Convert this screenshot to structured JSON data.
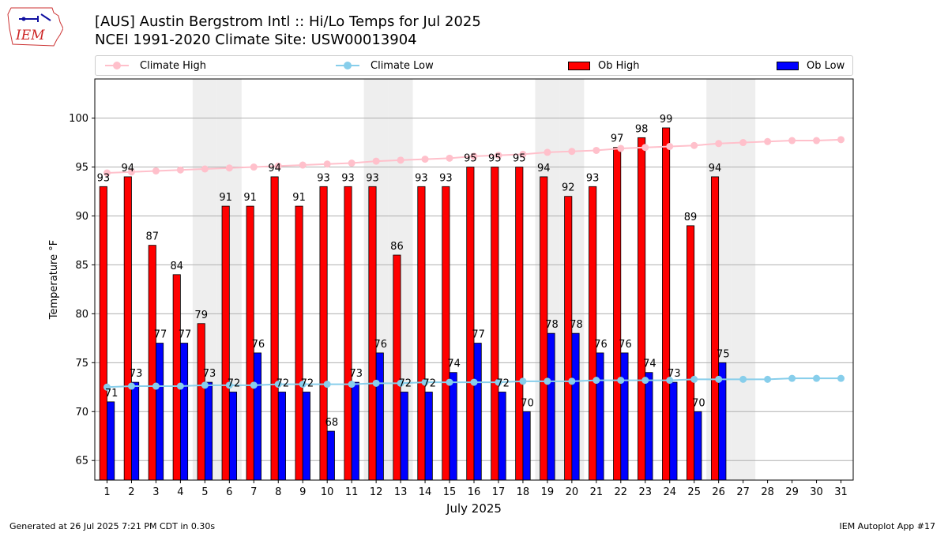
{
  "header": {
    "title_line1": "[AUS] Austin Bergstrom Intl :: Hi/Lo Temps for Jul 2025",
    "title_line2": "NCEI 1991-2020 Climate Site: USW00013904"
  },
  "logo": {
    "text": "IEM"
  },
  "legend": {
    "climate_high": "Climate High",
    "climate_low": "Climate Low",
    "ob_high": "Ob High",
    "ob_low": "Ob Low"
  },
  "footer": {
    "left": "Generated at 26 Jul 2025 7:21 PM CDT in 0.30s",
    "right": "IEM Autoplot App #17"
  },
  "colors": {
    "ob_high": "#ff0000",
    "ob_low": "#0000ff",
    "climate_high": "#ffc0cb",
    "climate_low": "#87ceeb",
    "weekend_shade": "#eeeeee",
    "grid": "#b0b0b0"
  },
  "chart_data": {
    "type": "bar",
    "xlabel": "July 2025",
    "ylabel": "Temperature °F",
    "ylim": [
      63,
      104
    ],
    "yticks": [
      65,
      70,
      75,
      80,
      85,
      90,
      95,
      100
    ],
    "grid": "horizontal",
    "legend_position": "top",
    "shaded_days": [
      5,
      6,
      12,
      13,
      19,
      20,
      26,
      27
    ],
    "days": [
      1,
      2,
      3,
      4,
      5,
      6,
      7,
      8,
      9,
      10,
      11,
      12,
      13,
      14,
      15,
      16,
      17,
      18,
      19,
      20,
      21,
      22,
      23,
      24,
      25,
      26,
      27,
      28,
      29,
      30,
      31
    ],
    "series": [
      {
        "name": "Ob High",
        "kind": "bar",
        "values": [
          93,
          94,
          87,
          84,
          79,
          91,
          91,
          94,
          91,
          93,
          93,
          93,
          86,
          93,
          93,
          95,
          95,
          95,
          94,
          92,
          93,
          97,
          98,
          99,
          89,
          94,
          null,
          null,
          null,
          null,
          null
        ]
      },
      {
        "name": "Ob Low",
        "kind": "bar",
        "values": [
          71,
          73,
          77,
          77,
          73,
          72,
          76,
          72,
          72,
          68,
          73,
          76,
          72,
          72,
          74,
          77,
          72,
          70,
          78,
          78,
          76,
          76,
          74,
          73,
          70,
          75,
          null,
          null,
          null,
          null,
          null
        ]
      },
      {
        "name": "Climate High",
        "kind": "line",
        "values": [
          94.4,
          94.5,
          94.6,
          94.7,
          94.8,
          94.9,
          95.0,
          95.1,
          95.2,
          95.3,
          95.4,
          95.6,
          95.7,
          95.8,
          95.9,
          96.1,
          96.2,
          96.3,
          96.5,
          96.6,
          96.7,
          96.9,
          97.0,
          97.1,
          97.2,
          97.4,
          97.5,
          97.6,
          97.7,
          97.7,
          97.8
        ]
      },
      {
        "name": "Climate Low",
        "kind": "line",
        "values": [
          72.5,
          72.6,
          72.6,
          72.6,
          72.7,
          72.7,
          72.7,
          72.8,
          72.8,
          72.8,
          72.8,
          72.9,
          72.9,
          73.0,
          73.0,
          73.0,
          73.0,
          73.1,
          73.1,
          73.1,
          73.2,
          73.2,
          73.2,
          73.2,
          73.3,
          73.3,
          73.3,
          73.3,
          73.4,
          73.4,
          73.4
        ]
      }
    ]
  }
}
